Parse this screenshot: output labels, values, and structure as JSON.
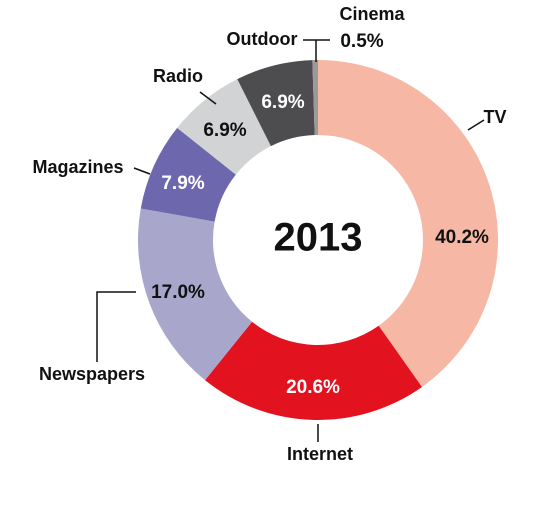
{
  "chart_data": {
    "type": "donut",
    "title": "2013",
    "categories": [
      "TV",
      "Internet",
      "Newspapers",
      "Magazines",
      "Radio",
      "Outdoor",
      "Cinema"
    ],
    "values": [
      40.2,
      20.6,
      17.0,
      7.9,
      6.9,
      6.9,
      0.5
    ],
    "value_labels": [
      "40.2%",
      "20.6%",
      "17.0%",
      "7.9%",
      "6.9%",
      "6.9%",
      "0.5%"
    ],
    "colors": [
      "#f6b8a5",
      "#e2131f",
      "#a9a6cc",
      "#6d68ad",
      "#d1d3d4",
      "#4d4d4f",
      "#9a9a9a"
    ]
  }
}
